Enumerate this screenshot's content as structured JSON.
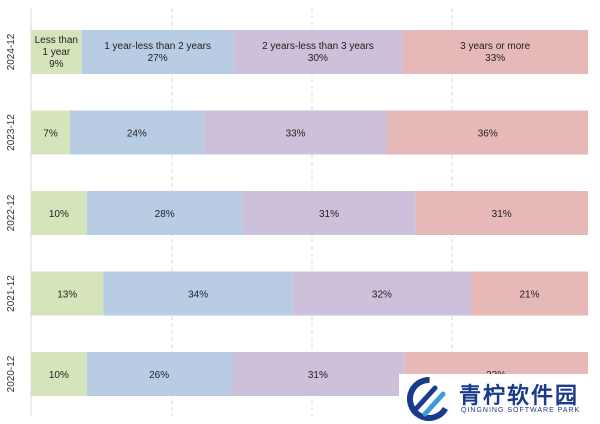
{
  "chart_data": {
    "type": "bar",
    "orientation": "horizontal-stacked-100",
    "categories": [
      "2024-12",
      "2023-12",
      "2022-12",
      "2021-12",
      "2020-12"
    ],
    "series": [
      {
        "name": "Less than 1 year",
        "values": [
          9,
          7,
          10,
          13,
          10
        ],
        "color": "#d6e4bc"
      },
      {
        "name": "1 year-less than 2 years",
        "values": [
          27,
          24,
          28,
          34,
          26
        ],
        "color": "#b8cce4"
      },
      {
        "name": "2 years-less than 3 years",
        "values": [
          30,
          33,
          31,
          32,
          31
        ],
        "color": "#ccc0da"
      },
      {
        "name": "3 years or more",
        "values": [
          33,
          36,
          31,
          21,
          33
        ],
        "color": "#e6b8b7"
      }
    ],
    "value_suffix": "%",
    "xlim": [
      0,
      100
    ],
    "gridlines": "dashed-vertical",
    "legend": "none"
  },
  "watermark": {
    "title": "青柠软件园",
    "subtitle": "QINGNING SOFTWARE PARK"
  }
}
